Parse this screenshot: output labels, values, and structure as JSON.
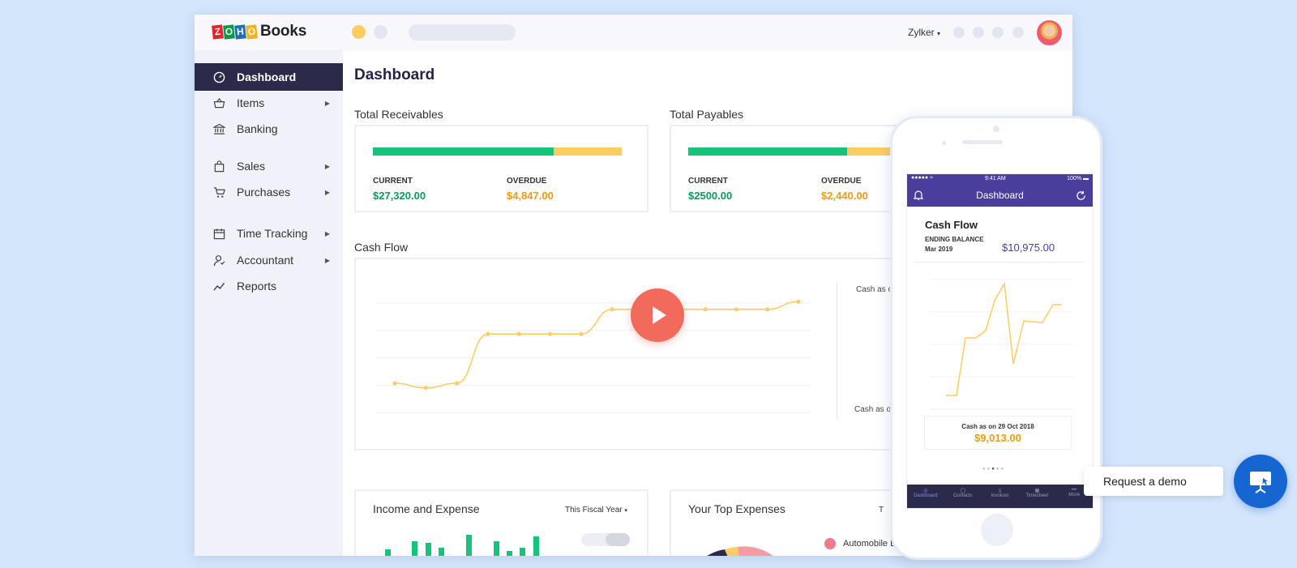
{
  "brand": {
    "logo_letters": [
      "Z",
      "O",
      "H",
      "O"
    ],
    "product": "Books"
  },
  "header": {
    "org": "Zylker"
  },
  "sidebar": {
    "items": [
      {
        "label": "Dashboard",
        "icon": "dashboard-icon",
        "active": true,
        "has_submenu": false
      },
      {
        "label": "Items",
        "icon": "basket-icon",
        "has_submenu": true
      },
      {
        "label": "Banking",
        "icon": "bank-icon",
        "has_submenu": false
      },
      {
        "label": "Sales",
        "icon": "shopping-bag-icon",
        "has_submenu": true
      },
      {
        "label": "Purchases",
        "icon": "cart-icon",
        "has_submenu": true
      },
      {
        "label": "Time Tracking",
        "icon": "calendar-icon",
        "has_submenu": true
      },
      {
        "label": "Accountant",
        "icon": "user-icon",
        "has_submenu": true
      },
      {
        "label": "Reports",
        "icon": "trend-icon",
        "has_submenu": false
      }
    ]
  },
  "main": {
    "title": "Dashboard",
    "receivables": {
      "title": "Total Receivables",
      "current_label": "CURRENT",
      "current": "$27,320.00",
      "overdue_label": "OVERDUE",
      "overdue": "$4,847.00",
      "current_fraction": 0.73
    },
    "payables": {
      "title": "Total Payables",
      "current_label": "CURRENT",
      "current": "$2500.00",
      "overdue_label": "OVERDUE",
      "overdue": "$2,440.00"
    },
    "cashflow": {
      "title": "Cash Flow",
      "legend_top": "Cash as o",
      "legend_bottom": "Cash as o"
    },
    "income_expense": {
      "title": "Income and Expense",
      "period": "This Fiscal Year"
    },
    "top_expenses": {
      "title": "Your Top Expenses",
      "period_partial": "T",
      "legend_first": "Automobile E"
    }
  },
  "chart_data": {
    "type": "line",
    "title": "Cash Flow",
    "y": [
      3,
      2.7,
      3,
      6.2,
      6.2,
      6.2,
      6.2,
      7.8,
      7.8,
      7.8,
      7.8,
      7.8,
      7.8,
      8.3
    ],
    "ylim": [
      0,
      10
    ],
    "grid": true
  },
  "mobile": {
    "status_time": "9:41 AM",
    "battery": "100%",
    "title": "Dashboard",
    "card_title": "Cash Flow",
    "ending_label": "ENDING BALANCE",
    "ending_period": "Mar 2019",
    "ending_value": "$10,975.00",
    "cash_as_on": "Cash as on",
    "cash_date": "29 Oct 2018",
    "cash_value": "$9,013.00",
    "tabs": [
      "Dashboard",
      "Contacts",
      "Invoices",
      "Timesheet",
      "More"
    ]
  },
  "demo": {
    "label": "Request a demo"
  },
  "colors": {
    "accent": "#4a3e9d",
    "green": "#17c37b",
    "yellow": "#fecd61",
    "dark": "#2c2a4a",
    "play": "#f26a5c",
    "demo": "#1566d2"
  }
}
